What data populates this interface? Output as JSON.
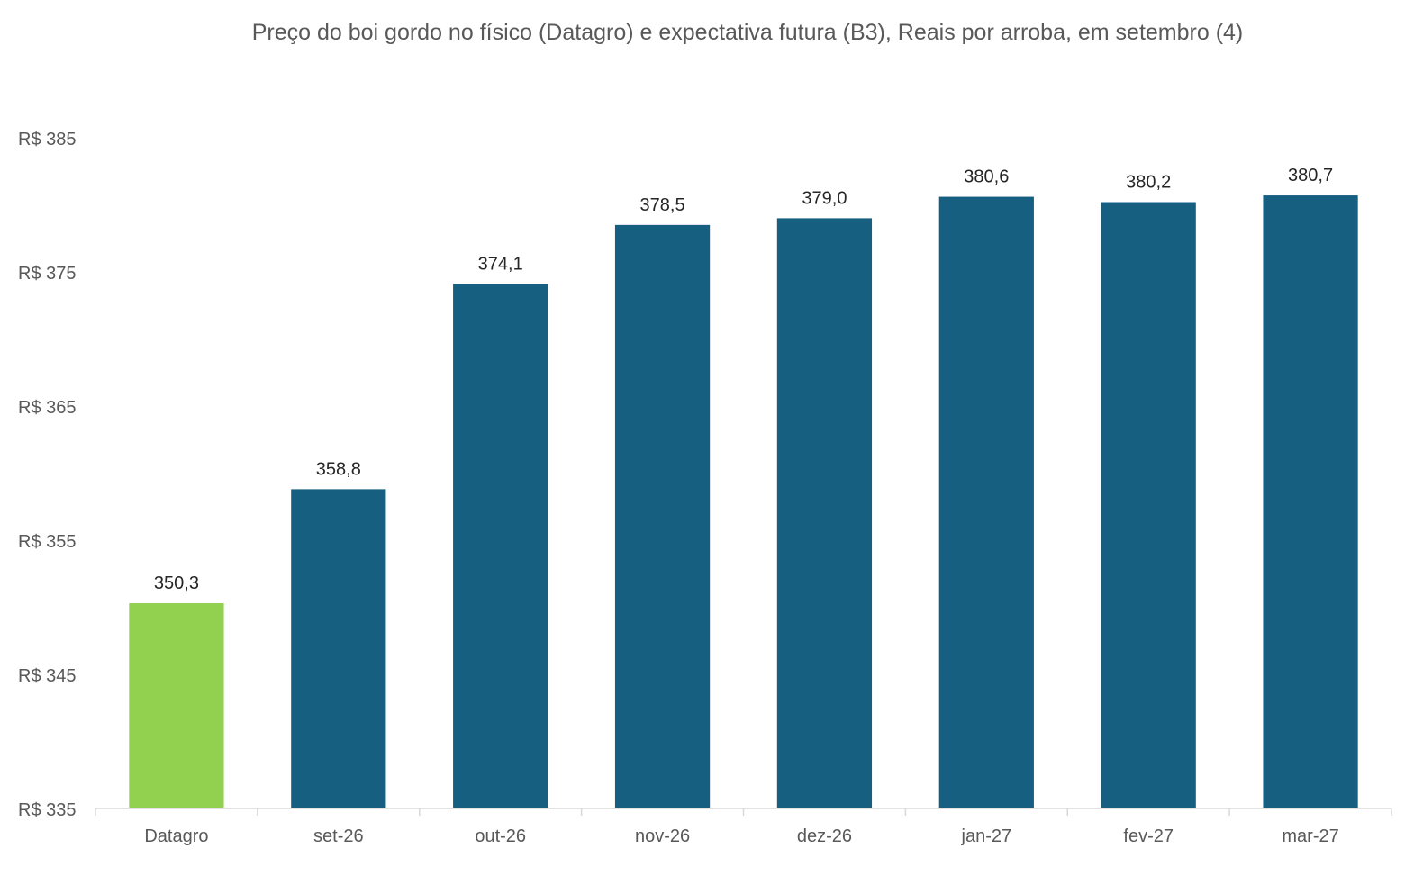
{
  "chart_data": {
    "type": "bar",
    "title": "Preço do boi gordo no físico (Datagro)  e expectativa futura (B3), Reais por arroba, em setembro (4)",
    "xlabel": "",
    "ylabel": "",
    "categories": [
      "Datagro",
      "set-26",
      "out-26",
      "nov-26",
      "dez-26",
      "jan-27",
      "fev-27",
      "mar-27"
    ],
    "values": [
      350.3,
      358.8,
      374.1,
      378.5,
      379.0,
      380.6,
      380.2,
      380.7
    ],
    "data_labels": [
      "350,3",
      "358,8",
      "374,1",
      "378,5",
      "379,0",
      "380,6",
      "380,2",
      "380,7"
    ],
    "ylim": [
      335,
      385
    ],
    "yticks": [
      335,
      345,
      355,
      365,
      375,
      385
    ],
    "ytick_labels": [
      "R$ 335",
      "R$ 345",
      "R$ 355",
      "R$ 365",
      "R$ 375",
      "R$ 385"
    ],
    "grid": false,
    "legend": "none",
    "bar_colors": [
      "#92d050",
      "#165f80",
      "#165f80",
      "#165f80",
      "#165f80",
      "#165f80",
      "#165f80",
      "#165f80"
    ]
  }
}
